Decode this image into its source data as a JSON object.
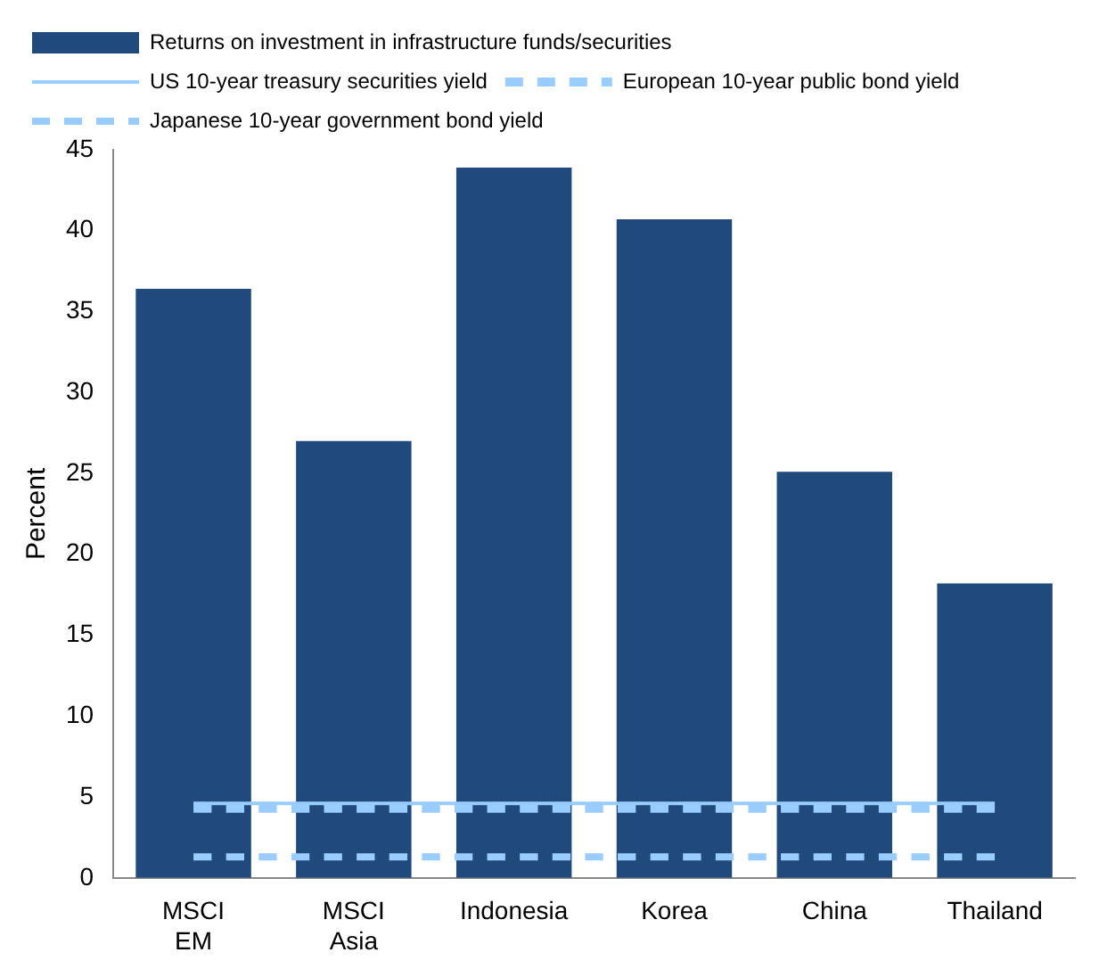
{
  "chart_data": {
    "type": "bar",
    "ylabel": "Percent",
    "categories": [
      "MSCI EM",
      "MSCI Asia",
      "Indonesia",
      "Korea",
      "China",
      "Thailand"
    ],
    "series": [
      {
        "name": "Returns on investment in infrastructure funds/securities",
        "color": "#214a7c",
        "values": [
          36.4,
          27,
          43.9,
          40.7,
          25.1,
          18.2
        ]
      },
      {
        "name": "US 10-year treasury securities yield",
        "type": "line",
        "line_style": "solid",
        "color": "#99ccff",
        "values": [
          4.6,
          4.6,
          4.6,
          4.6,
          4.6,
          4.6
        ]
      },
      {
        "name": "European 10-year public bond yield",
        "type": "line",
        "line_style": "dashed",
        "color": "#99ccff",
        "values": [
          4.3,
          4.3,
          4.3,
          4.3,
          4.3,
          4.3
        ]
      },
      {
        "name": "Japanese 10-year government bond yield",
        "type": "line",
        "line_style": "dashed",
        "color": "#99ccff",
        "values": [
          1.3,
          1.3,
          1.3,
          1.3,
          1.3,
          1.3
        ]
      }
    ],
    "ylim": [
      0,
      45
    ],
    "yticks": [
      0,
      5,
      10,
      15,
      20,
      25,
      30,
      35,
      40,
      45
    ],
    "grid": false,
    "legend": "top left",
    "marker": "none"
  }
}
